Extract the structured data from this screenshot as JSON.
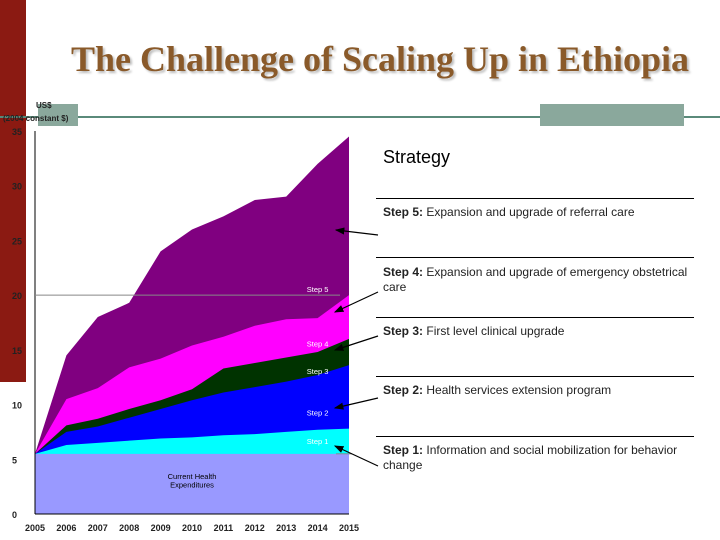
{
  "slide": {
    "title": "The Challenge of Scaling Up in Ethiopia"
  },
  "strategy": {
    "heading": "Strategy",
    "steps": [
      {
        "label": "Step 5:",
        "text": "Expansion and upgrade of referral care"
      },
      {
        "label": "Step 4:",
        "text": "Expansion and upgrade of emergency obstetrical care"
      },
      {
        "label": "Step 3:",
        "text": "First level clinical upgrade"
      },
      {
        "label": "Step 2:",
        "text": "Health services extension program"
      },
      {
        "label": "Step 1:",
        "text": "Information and social mobilization for behavior change"
      }
    ]
  },
  "chart_data": {
    "type": "area",
    "stacked": false,
    "ylabel_line1": "US$",
    "ylabel_line2": "(2004 constant $)",
    "ylim": [
      0,
      35
    ],
    "yticks": [
      0,
      5,
      10,
      15,
      20,
      25,
      30,
      35
    ],
    "x": [
      "2005",
      "2006",
      "2007",
      "2008",
      "2009",
      "2010",
      "2011",
      "2012",
      "2013",
      "2014",
      "2015"
    ],
    "series": [
      {
        "name": "Step 5",
        "color": "#800080",
        "values": [
          5.5,
          14.5,
          18,
          19.3,
          24,
          26,
          27.2,
          28.7,
          29,
          32,
          34.5
        ]
      },
      {
        "name": "Step 4",
        "color": "#ff00ff",
        "values": [
          5.5,
          10.5,
          11.5,
          13.4,
          14.2,
          15.4,
          16.2,
          17.2,
          17.8,
          17.9,
          20
        ]
      },
      {
        "name": "Step 3",
        "color": "#003300",
        "values": [
          5.5,
          8.1,
          8.7,
          9.6,
          10.4,
          11.4,
          13.3,
          13.8,
          14.3,
          14.8,
          16
        ]
      },
      {
        "name": "Step 2",
        "color": "#0000ff",
        "values": [
          5.5,
          7.5,
          8,
          8.8,
          9.6,
          10.4,
          11.1,
          11.6,
          12.1,
          12.7,
          13.6
        ]
      },
      {
        "name": "Step 1",
        "color": "#00ffff",
        "values": [
          5.5,
          6.3,
          6.5,
          6.7,
          6.9,
          7.0,
          7.2,
          7.3,
          7.5,
          7.7,
          7.8
        ]
      },
      {
        "name": "Current Health Expenditures",
        "color": "#9999ff",
        "values": [
          5.5,
          5.5,
          5.5,
          5.5,
          5.5,
          5.5,
          5.5,
          5.5,
          5.5,
          5.5,
          5.5
        ]
      }
    ],
    "area_labels": [
      {
        "text": "Step 5",
        "series": "Step 5",
        "at_x": "2014",
        "at_y": 20.3
      },
      {
        "text": "Step 4",
        "series": "Step 4",
        "at_x": "2014",
        "at_y": 15.3
      },
      {
        "text": "Step 3",
        "series": "Step 3",
        "at_x": "2014",
        "at_y": 12.8
      },
      {
        "text": "Step 2",
        "series": "Step 2",
        "at_x": "2014",
        "at_y": 9
      },
      {
        "text": "Step 1",
        "series": "Step 1",
        "at_x": "2014",
        "at_y": 6.4
      },
      {
        "text": "Current Health",
        "series": "Current Health Expenditures",
        "at_x": "2010",
        "at_y": 3.2
      },
      {
        "text": "Expenditures",
        "series": "Current Health Expenditures",
        "at_x": "2010",
        "at_y": 2.4
      }
    ]
  }
}
